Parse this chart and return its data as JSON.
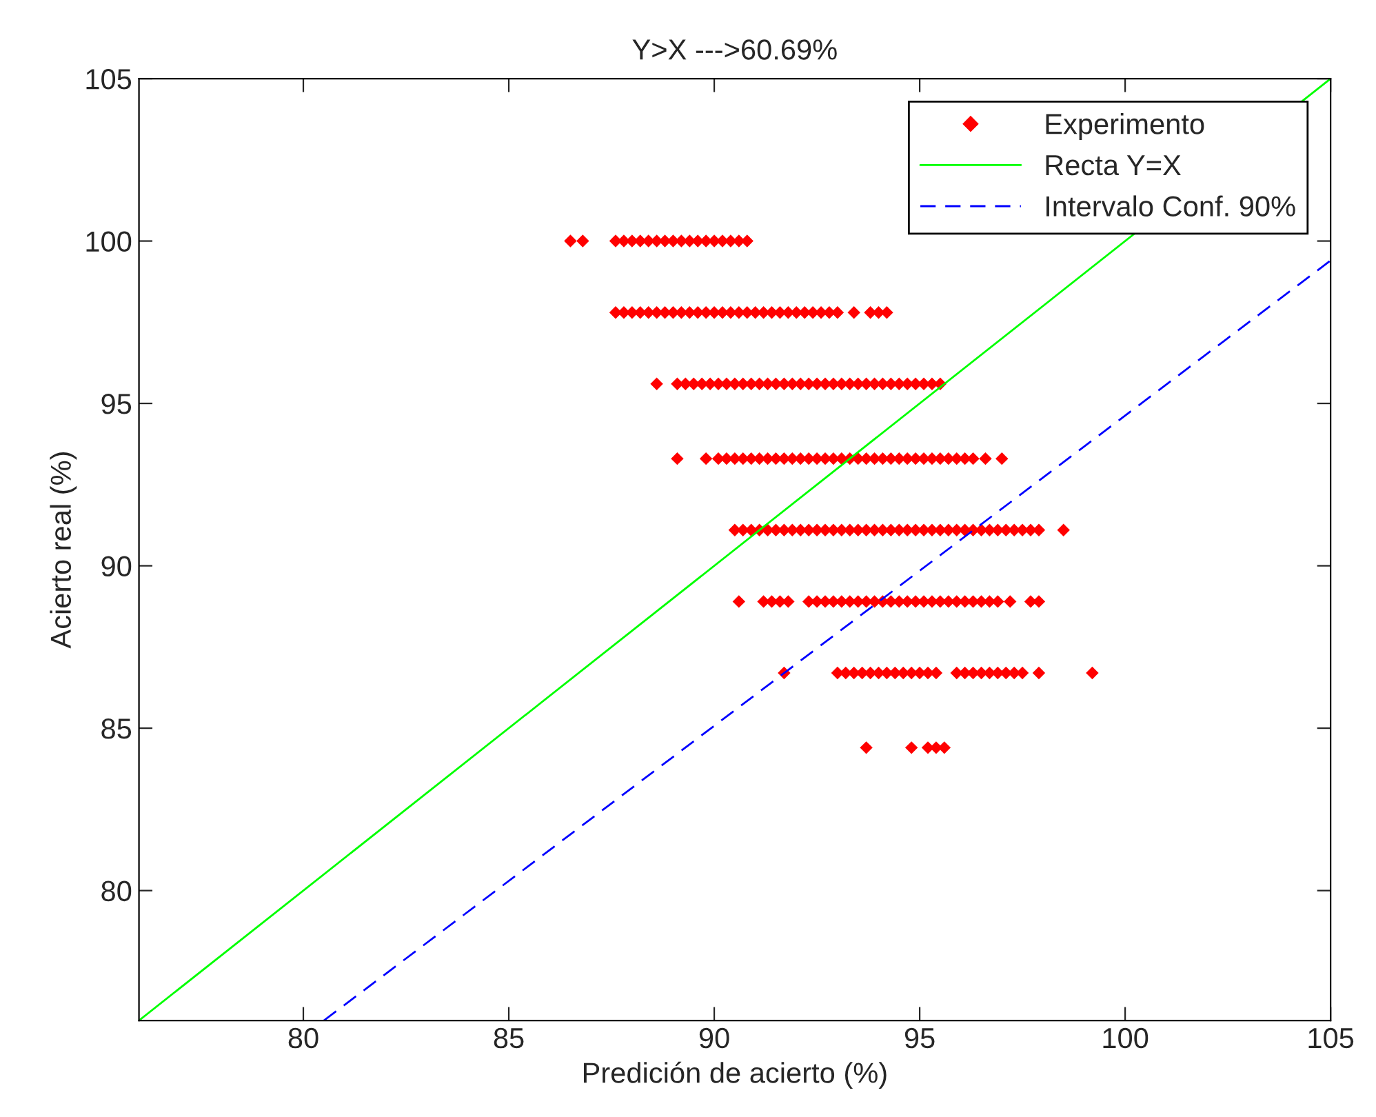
{
  "chart_data": {
    "type": "scatter",
    "title": "Y>X --->60.69%",
    "xlabel": "Predición de acierto (%)",
    "ylabel": "Acierto real (%)",
    "xlim": [
      76,
      105
    ],
    "ylim": [
      76,
      105
    ],
    "xticks": [
      80,
      85,
      90,
      95,
      100,
      105
    ],
    "yticks": [
      80,
      85,
      90,
      95,
      100,
      105
    ],
    "grid": false,
    "legend": "top right",
    "series": [
      {
        "name": "Experimento",
        "marker": "diamond",
        "color": "#ff0000",
        "x": [
          86.5,
          86.8,
          87.6,
          87.8,
          88.0,
          88.2,
          88.4,
          88.6,
          88.8,
          89.0,
          89.2,
          89.4,
          89.6,
          89.8,
          90.0,
          90.2,
          90.4,
          90.6,
          90.8
        ],
        "values": [
          100,
          100,
          100,
          100,
          100,
          100,
          100,
          100,
          100,
          100,
          100,
          100,
          100,
          100,
          100,
          100,
          100,
          100,
          100
        ]
      },
      {
        "marker": "diamond",
        "color": "#ff0000",
        "x": [
          87.6,
          87.8,
          88.0,
          88.2,
          88.4,
          88.6,
          88.8,
          89.0,
          89.2,
          89.4,
          89.6,
          89.8,
          90.0,
          90.2,
          90.4,
          90.6,
          90.8,
          91.0,
          91.2,
          91.4,
          91.6,
          91.8,
          92.0,
          92.2,
          92.4,
          92.6,
          92.8,
          93.0,
          93.4,
          93.8,
          94.0,
          94.2
        ],
        "values": [
          97.8,
          97.8,
          97.8,
          97.8,
          97.8,
          97.8,
          97.8,
          97.8,
          97.8,
          97.8,
          97.8,
          97.8,
          97.8,
          97.8,
          97.8,
          97.8,
          97.8,
          97.8,
          97.8,
          97.8,
          97.8,
          97.8,
          97.8,
          97.8,
          97.8,
          97.8,
          97.8,
          97.8,
          97.8,
          97.8,
          97.8,
          97.8
        ]
      },
      {
        "marker": "diamond",
        "color": "#ff0000",
        "x": [
          88.6,
          89.1,
          89.3,
          89.5,
          89.7,
          89.9,
          90.1,
          90.3,
          90.5,
          90.7,
          90.9,
          91.1,
          91.3,
          91.5,
          91.7,
          91.9,
          92.1,
          92.3,
          92.5,
          92.7,
          92.9,
          93.1,
          93.3,
          93.5,
          93.7,
          93.9,
          94.1,
          94.3,
          94.5,
          94.7,
          94.9,
          95.1,
          95.3,
          95.5
        ],
        "values": [
          95.6,
          95.6,
          95.6,
          95.6,
          95.6,
          95.6,
          95.6,
          95.6,
          95.6,
          95.6,
          95.6,
          95.6,
          95.6,
          95.6,
          95.6,
          95.6,
          95.6,
          95.6,
          95.6,
          95.6,
          95.6,
          95.6,
          95.6,
          95.6,
          95.6,
          95.6,
          95.6,
          95.6,
          95.6,
          95.6,
          95.6,
          95.6,
          95.6,
          95.6
        ]
      },
      {
        "marker": "diamond",
        "color": "#ff0000",
        "x": [
          89.1,
          89.8,
          90.1,
          90.3,
          90.5,
          90.7,
          90.9,
          91.1,
          91.3,
          91.5,
          91.7,
          91.9,
          92.1,
          92.3,
          92.5,
          92.7,
          92.9,
          93.1,
          93.3,
          93.5,
          93.7,
          93.9,
          94.1,
          94.3,
          94.5,
          94.7,
          94.9,
          95.1,
          95.3,
          95.5,
          95.7,
          95.9,
          96.1,
          96.3,
          96.6,
          97.0
        ],
        "values": [
          93.3,
          93.3,
          93.3,
          93.3,
          93.3,
          93.3,
          93.3,
          93.3,
          93.3,
          93.3,
          93.3,
          93.3,
          93.3,
          93.3,
          93.3,
          93.3,
          93.3,
          93.3,
          93.3,
          93.3,
          93.3,
          93.3,
          93.3,
          93.3,
          93.3,
          93.3,
          93.3,
          93.3,
          93.3,
          93.3,
          93.3,
          93.3,
          93.3,
          93.3,
          93.3,
          93.3
        ]
      },
      {
        "marker": "diamond",
        "color": "#ff0000",
        "x": [
          90.5,
          90.7,
          90.9,
          91.1,
          91.3,
          91.5,
          91.7,
          91.9,
          92.1,
          92.3,
          92.5,
          92.7,
          92.9,
          93.1,
          93.3,
          93.5,
          93.7,
          93.9,
          94.1,
          94.3,
          94.5,
          94.7,
          94.9,
          95.1,
          95.3,
          95.5,
          95.7,
          95.9,
          96.1,
          96.3,
          96.5,
          96.7,
          96.9,
          97.1,
          97.3,
          97.5,
          97.7,
          97.9,
          98.5
        ],
        "values": [
          91.1,
          91.1,
          91.1,
          91.1,
          91.1,
          91.1,
          91.1,
          91.1,
          91.1,
          91.1,
          91.1,
          91.1,
          91.1,
          91.1,
          91.1,
          91.1,
          91.1,
          91.1,
          91.1,
          91.1,
          91.1,
          91.1,
          91.1,
          91.1,
          91.1,
          91.1,
          91.1,
          91.1,
          91.1,
          91.1,
          91.1,
          91.1,
          91.1,
          91.1,
          91.1,
          91.1,
          91.1,
          91.1,
          91.1
        ]
      },
      {
        "marker": "diamond",
        "color": "#ff0000",
        "x": [
          90.6,
          91.2,
          91.4,
          91.6,
          91.8,
          92.3,
          92.5,
          92.7,
          92.9,
          93.1,
          93.3,
          93.5,
          93.7,
          93.9,
          94.1,
          94.3,
          94.5,
          94.7,
          94.9,
          95.1,
          95.3,
          95.5,
          95.7,
          95.9,
          96.1,
          96.3,
          96.5,
          96.7,
          96.9,
          97.2,
          97.7,
          97.9
        ],
        "values": [
          88.9,
          88.9,
          88.9,
          88.9,
          88.9,
          88.9,
          88.9,
          88.9,
          88.9,
          88.9,
          88.9,
          88.9,
          88.9,
          88.9,
          88.9,
          88.9,
          88.9,
          88.9,
          88.9,
          88.9,
          88.9,
          88.9,
          88.9,
          88.9,
          88.9,
          88.9,
          88.9,
          88.9,
          88.9,
          88.9,
          88.9,
          88.9
        ]
      },
      {
        "marker": "diamond",
        "color": "#ff0000",
        "x": [
          91.7,
          93.0,
          93.2,
          93.4,
          93.6,
          93.8,
          94.0,
          94.2,
          94.4,
          94.6,
          94.8,
          95.0,
          95.2,
          95.4,
          95.9,
          96.1,
          96.3,
          96.5,
          96.7,
          96.9,
          97.1,
          97.3,
          97.5,
          97.9,
          99.2
        ],
        "values": [
          86.7,
          86.7,
          86.7,
          86.7,
          86.7,
          86.7,
          86.7,
          86.7,
          86.7,
          86.7,
          86.7,
          86.7,
          86.7,
          86.7,
          86.7,
          86.7,
          86.7,
          86.7,
          86.7,
          86.7,
          86.7,
          86.7,
          86.7,
          86.7,
          86.7
        ]
      },
      {
        "marker": "diamond",
        "color": "#ff0000",
        "x": [
          93.7,
          94.8,
          95.2,
          95.4,
          95.6
        ],
        "values": [
          84.4,
          84.4,
          84.4,
          84.4,
          84.4
        ]
      },
      {
        "name": "Recta Y=X",
        "type": "line",
        "line_style": "solid",
        "marker": "none",
        "color": "#00ff00",
        "x": [
          76,
          105
        ],
        "values": [
          76,
          105
        ]
      },
      {
        "name": "Intervalo Conf. 90%",
        "type": "line",
        "line_style": "dashed",
        "marker": "none",
        "color": "#0000ff",
        "x": [
          80.5,
          105
        ],
        "values": [
          76,
          99.4
        ]
      }
    ]
  }
}
